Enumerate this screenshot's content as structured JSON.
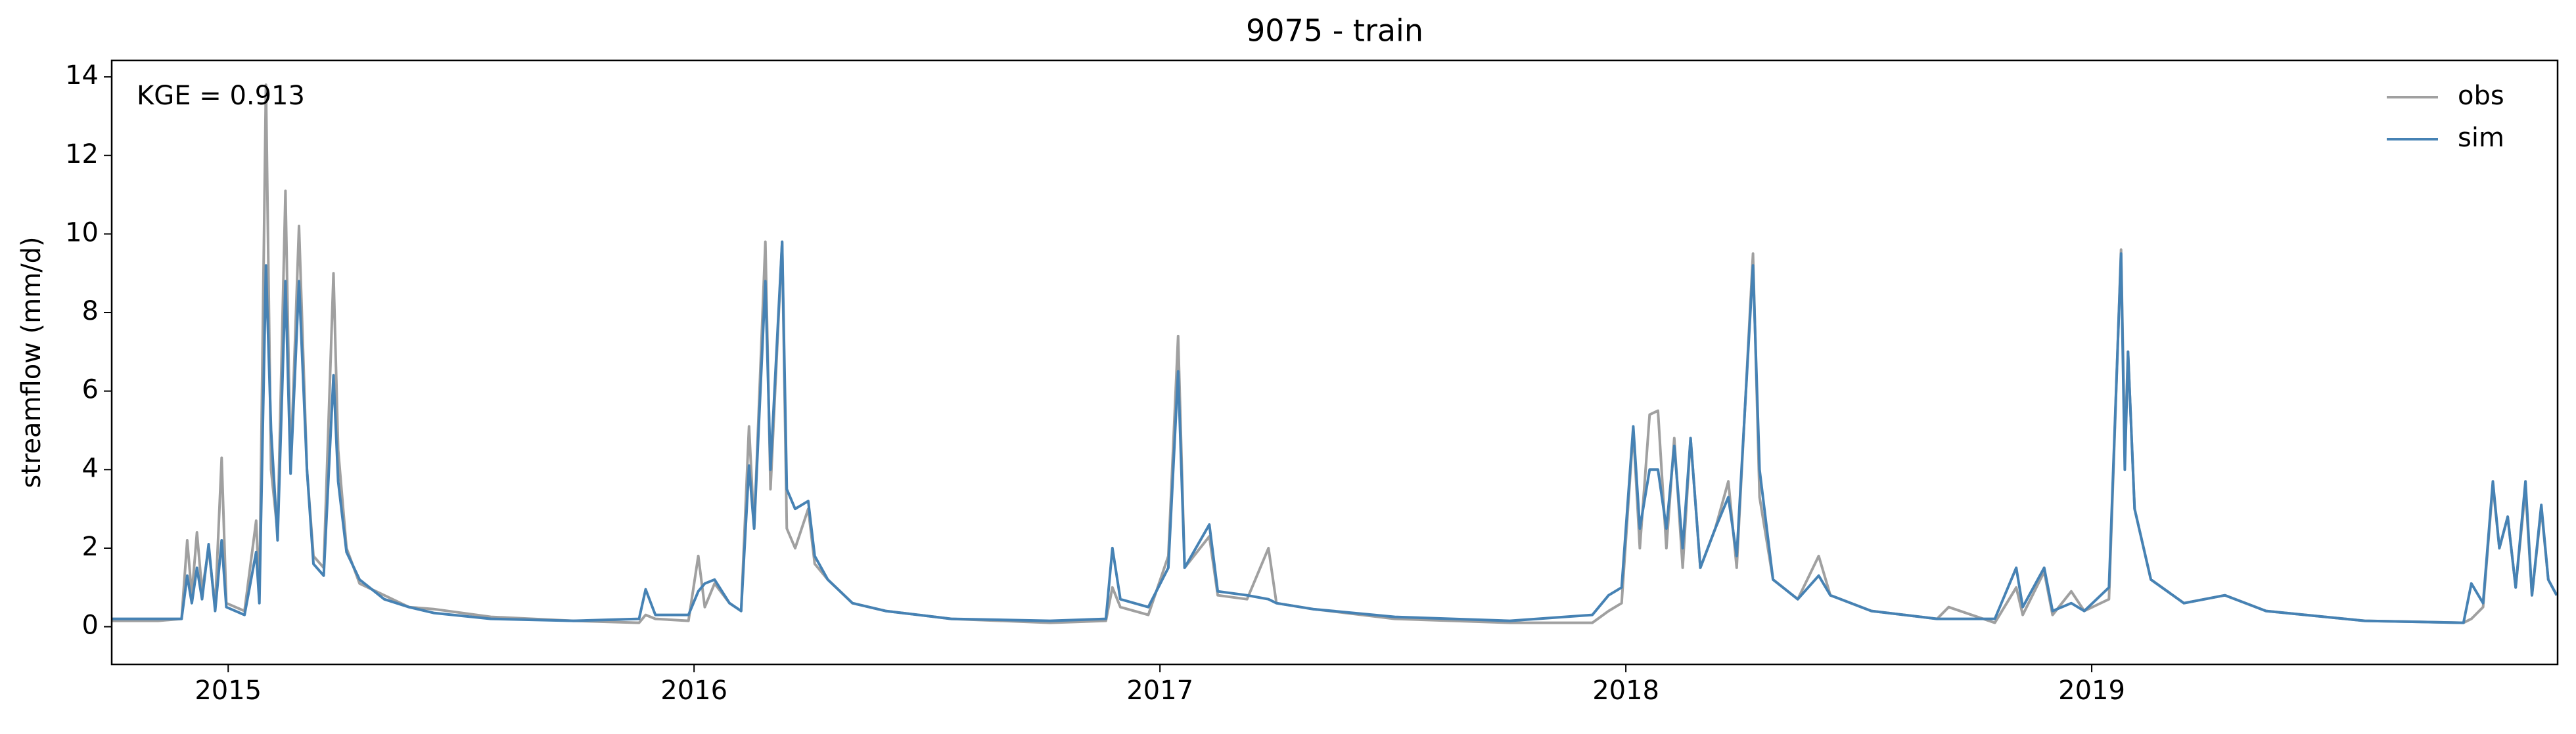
{
  "chart_data": {
    "type": "line",
    "title": "9075 - train",
    "ylabel": "streamflow (mm/d)",
    "annotation": "KGE = 0.913",
    "legend": "upper right",
    "xlim": [
      2014.75,
      2020.0
    ],
    "xticks": [
      2015,
      2016,
      2017,
      2018,
      2019
    ],
    "ylim": [
      -0.96,
      14.42
    ],
    "yticks": [
      0,
      2,
      4,
      6,
      8,
      10,
      12,
      14
    ],
    "x": [
      2014.75,
      2014.85,
      2014.9,
      2014.912,
      2014.922,
      2014.933,
      2014.944,
      2014.958,
      2014.972,
      2014.986,
      2014.996,
      2015.035,
      2015.06,
      2015.067,
      2015.081,
      2015.092,
      2015.106,
      2015.123,
      2015.134,
      2015.152,
      2015.169,
      2015.183,
      2015.205,
      2015.226,
      2015.236,
      2015.254,
      2015.282,
      2015.335,
      2015.388,
      2015.441,
      2015.564,
      2015.741,
      2015.882,
      2015.896,
      2015.917,
      2015.988,
      2016.009,
      2016.023,
      2016.044,
      2016.076,
      2016.101,
      2016.118,
      2016.129,
      2016.153,
      2016.164,
      2016.189,
      2016.199,
      2016.217,
      2016.245,
      2016.259,
      2016.287,
      2016.34,
      2016.411,
      2016.552,
      2016.764,
      2016.884,
      2016.898,
      2016.915,
      2016.975,
      2017.018,
      2017.039,
      2017.053,
      2017.106,
      2017.124,
      2017.187,
      2017.233,
      2017.25,
      2017.328,
      2017.504,
      2017.751,
      2017.928,
      2017.963,
      2017.991,
      2018.016,
      2018.03,
      2018.051,
      2018.069,
      2018.087,
      2018.104,
      2018.122,
      2018.139,
      2018.16,
      2018.192,
      2018.22,
      2018.238,
      2018.273,
      2018.287,
      2018.316,
      2018.369,
      2018.414,
      2018.439,
      2018.527,
      2018.668,
      2018.693,
      2018.792,
      2018.838,
      2018.852,
      2018.898,
      2018.916,
      2018.956,
      2018.984,
      2019.037,
      2019.063,
      2019.071,
      2019.078,
      2019.092,
      2019.127,
      2019.198,
      2019.286,
      2019.374,
      2019.586,
      2019.798,
      2019.815,
      2019.84,
      2019.861,
      2019.875,
      2019.893,
      2019.91,
      2019.931,
      2019.945,
      2019.965,
      2019.98,
      2019.998
    ],
    "series": [
      {
        "name": "obs",
        "color": "#a0a0a0",
        "values": [
          0.15,
          0.15,
          0.2,
          2.2,
          0.8,
          2.4,
          0.9,
          2.0,
          0.5,
          4.3,
          0.6,
          0.4,
          2.7,
          0.8,
          13.8,
          4.0,
          2.4,
          11.1,
          4.0,
          10.2,
          4.0,
          1.8,
          1.5,
          9.0,
          4.5,
          2.0,
          1.1,
          0.8,
          0.5,
          0.45,
          0.25,
          0.15,
          0.1,
          0.3,
          0.2,
          0.15,
          1.8,
          0.5,
          1.1,
          0.6,
          0.4,
          5.1,
          2.5,
          9.8,
          3.5,
          9.8,
          2.5,
          2.0,
          3.0,
          1.6,
          1.2,
          0.6,
          0.4,
          0.2,
          0.1,
          0.15,
          1.0,
          0.5,
          0.3,
          1.8,
          7.4,
          1.5,
          2.3,
          0.8,
          0.7,
          2.0,
          0.6,
          0.45,
          0.2,
          0.1,
          0.1,
          0.4,
          0.6,
          5.0,
          2.0,
          5.4,
          5.5,
          2.0,
          4.8,
          1.5,
          4.8,
          1.5,
          2.5,
          3.7,
          1.5,
          9.5,
          3.3,
          1.2,
          0.7,
          1.8,
          0.8,
          0.4,
          0.2,
          0.5,
          0.1,
          1.0,
          0.3,
          1.4,
          0.3,
          0.9,
          0.4,
          0.7,
          9.6,
          4.5,
          7.0,
          3.0,
          1.2,
          0.6,
          0.8,
          0.4,
          0.15,
          0.1,
          0.2,
          0.5,
          3.6,
          2.0,
          2.8,
          1.0,
          3.5,
          0.8,
          3.0,
          1.2,
          0.8
        ]
      },
      {
        "name": "sim",
        "color": "#4682b4",
        "values": [
          0.2,
          0.2,
          0.2,
          1.3,
          0.6,
          1.5,
          0.7,
          2.1,
          0.4,
          2.2,
          0.5,
          0.3,
          1.9,
          0.6,
          9.2,
          5.0,
          2.2,
          8.8,
          3.9,
          8.8,
          4.0,
          1.6,
          1.3,
          6.4,
          3.7,
          1.9,
          1.2,
          0.7,
          0.5,
          0.35,
          0.2,
          0.15,
          0.2,
          0.95,
          0.3,
          0.3,
          0.9,
          1.1,
          1.2,
          0.6,
          0.4,
          4.1,
          2.5,
          8.8,
          4.0,
          9.8,
          3.5,
          3.0,
          3.2,
          1.8,
          1.2,
          0.6,
          0.4,
          0.2,
          0.15,
          0.2,
          2.0,
          0.7,
          0.5,
          1.5,
          6.5,
          1.5,
          2.6,
          0.9,
          0.8,
          0.7,
          0.6,
          0.45,
          0.25,
          0.15,
          0.3,
          0.8,
          1.0,
          5.1,
          2.5,
          4.0,
          4.0,
          2.5,
          4.6,
          2.0,
          4.8,
          1.5,
          2.5,
          3.3,
          1.8,
          9.2,
          4.0,
          1.2,
          0.7,
          1.3,
          0.8,
          0.4,
          0.2,
          0.2,
          0.2,
          1.5,
          0.5,
          1.5,
          0.4,
          0.6,
          0.4,
          1.0,
          9.5,
          4.0,
          7.0,
          3.0,
          1.2,
          0.6,
          0.8,
          0.4,
          0.15,
          0.1,
          1.1,
          0.6,
          3.7,
          2.0,
          2.8,
          1.0,
          3.7,
          0.8,
          3.1,
          1.2,
          0.8
        ]
      }
    ]
  }
}
